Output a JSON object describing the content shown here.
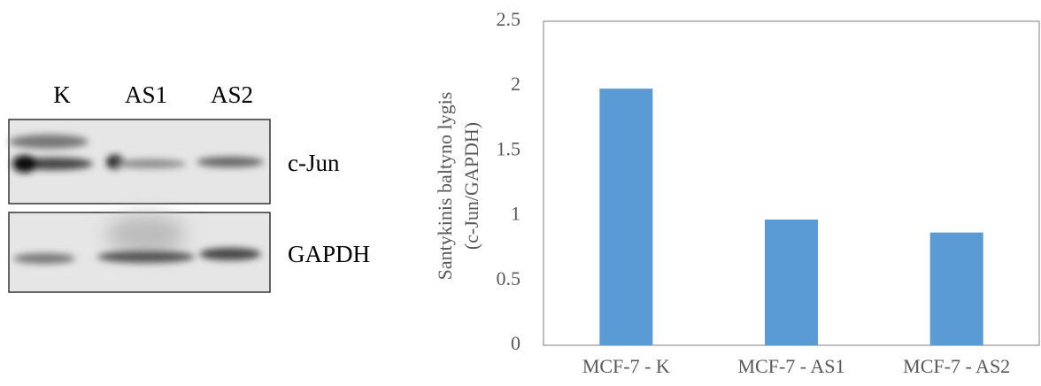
{
  "blot": {
    "lanes": [
      "K",
      "AS1",
      "AS2"
    ],
    "proteins": [
      "c-Jun",
      "GAPDH"
    ]
  },
  "chart_data": {
    "type": "bar",
    "ylabel": [
      "Santykinis  baltyno lygis",
      "(c-Jun/GAPDH)"
    ],
    "categories": [
      "MCF-7 - K",
      "MCF-7 - AS1",
      "MCF-7 - AS2"
    ],
    "values": [
      1.98,
      0.97,
      0.87
    ],
    "color": "#5b9bd5",
    "ylim": [
      0,
      2.5
    ],
    "yticks": [
      0,
      0.5,
      1,
      1.5,
      2,
      2.5
    ],
    "grid": false
  }
}
